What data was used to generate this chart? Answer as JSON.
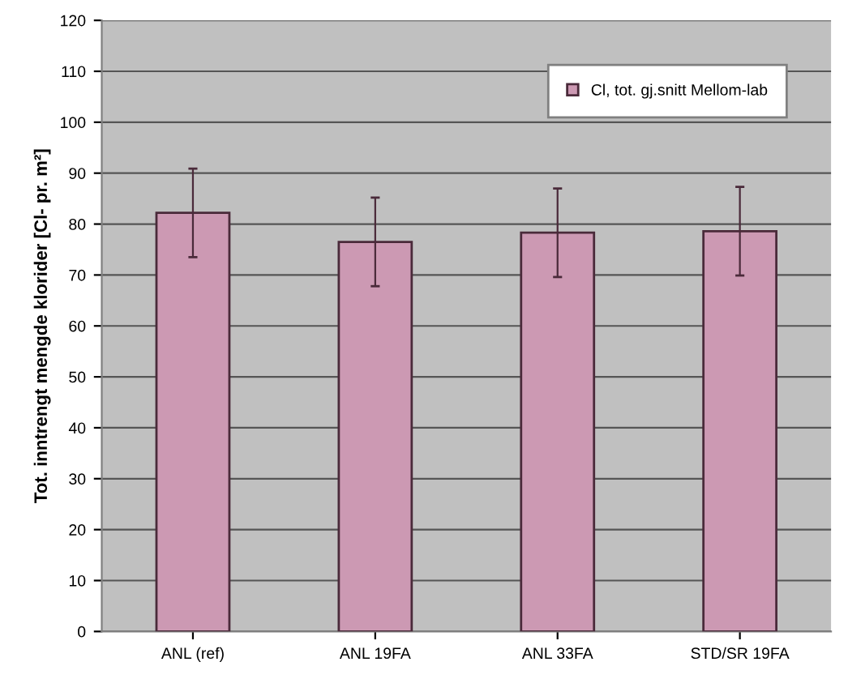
{
  "chart_data": {
    "type": "bar",
    "ylabel": "Tot. inntrengt mengde klorider [Cl- pr. m²]",
    "categories": [
      "ANL (ref)",
      "ANL 19FA",
      "ANL 33FA",
      "STD/SR 19FA"
    ],
    "series": [
      {
        "name": "Cl, tot. gj.snitt Mellom-lab",
        "color": "#cc99b3",
        "values": [
          82.2,
          76.5,
          78.3,
          78.6
        ],
        "errors": [
          8.7,
          8.7,
          8.7,
          8.7
        ]
      }
    ],
    "ylim": [
      0,
      120
    ],
    "yticks": [
      0,
      10,
      20,
      30,
      40,
      50,
      60,
      70,
      80,
      90,
      100,
      110,
      120
    ],
    "grid": "y",
    "legend": "top right"
  }
}
